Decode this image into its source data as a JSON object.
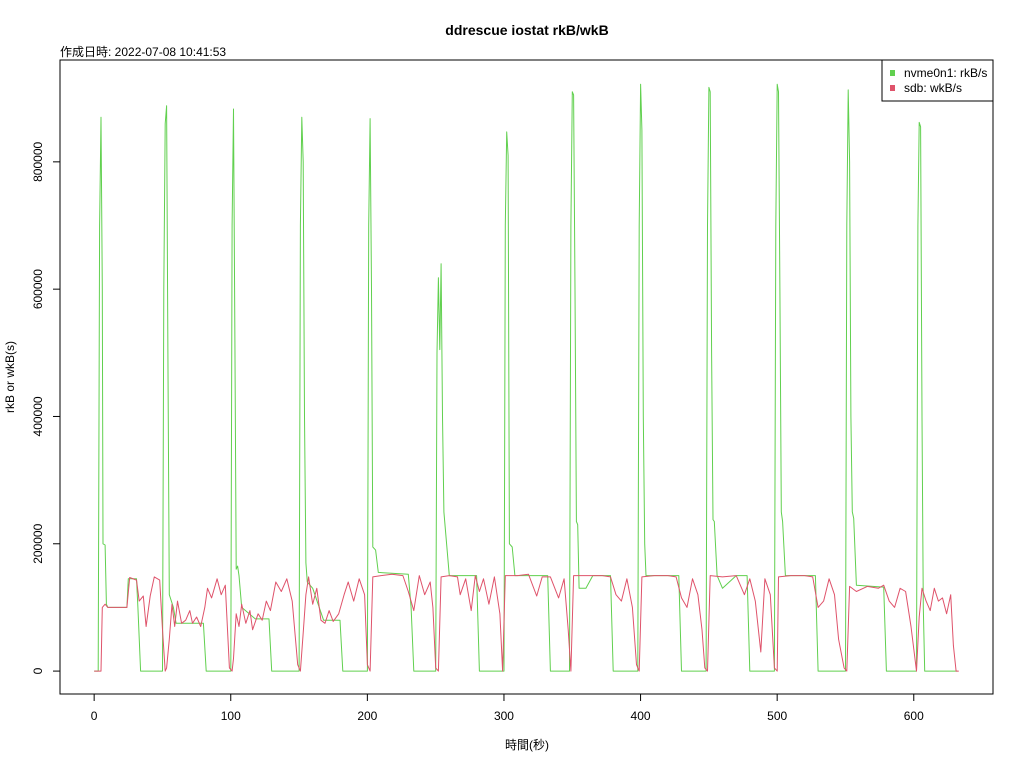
{
  "chart_data": {
    "type": "line",
    "title": "ddrescue iostat rkB/wkB",
    "subtitle": "作成日時: 2022-07-08 10:41:53",
    "xlabel": "時間(秒)",
    "ylabel": "rkB or wkB(s)",
    "xlim": [
      -25,
      658
    ],
    "ylim": [
      -36000,
      960000
    ],
    "x_ticks": [
      0,
      100,
      200,
      300,
      400,
      500,
      600
    ],
    "y_ticks": [
      0,
      200000,
      400000,
      600000,
      800000
    ],
    "x_tick_labels": [
      "0",
      "100",
      "200",
      "300",
      "400",
      "500",
      "600"
    ],
    "y_tick_labels": [
      "0",
      "200000",
      "400000",
      "600000",
      "800000"
    ],
    "legend_position": "top-right",
    "grid": false,
    "series": [
      {
        "name": "nvme0n1: rkB/s",
        "color": "#61D04F",
        "points": [
          [
            0,
            0
          ],
          [
            3,
            0
          ],
          [
            4,
            700000
          ],
          [
            5,
            870000
          ],
          [
            6,
            600000
          ],
          [
            6.5,
            200000
          ],
          [
            8,
            198000
          ],
          [
            9,
            105000
          ],
          [
            10,
            100000
          ],
          [
            24,
            100000
          ],
          [
            25,
            145000
          ],
          [
            31,
            145000
          ],
          [
            32,
            100000
          ],
          [
            34,
            0
          ],
          [
            50,
            0
          ],
          [
            51,
            600000
          ],
          [
            52,
            860000
          ],
          [
            53,
            888000
          ],
          [
            54,
            500000
          ],
          [
            55,
            120000
          ],
          [
            58,
            100000
          ],
          [
            60,
            75000
          ],
          [
            80,
            75000
          ],
          [
            82,
            0
          ],
          [
            100,
            0
          ],
          [
            101,
            700000
          ],
          [
            102,
            883000
          ],
          [
            103,
            520000
          ],
          [
            104,
            160000
          ],
          [
            105,
            165000
          ],
          [
            106,
            150000
          ],
          [
            108,
            100000
          ],
          [
            118,
            82000
          ],
          [
            128,
            82000
          ],
          [
            130,
            0
          ],
          [
            150,
            0
          ],
          [
            151,
            700000
          ],
          [
            152,
            870000
          ],
          [
            153,
            800000
          ],
          [
            154,
            400000
          ],
          [
            155,
            170000
          ],
          [
            156,
            140000
          ],
          [
            160,
            130000
          ],
          [
            168,
            80000
          ],
          [
            180,
            80000
          ],
          [
            182,
            0
          ],
          [
            200,
            0
          ],
          [
            201,
            700000
          ],
          [
            202,
            868000
          ],
          [
            203,
            600000
          ],
          [
            204,
            195000
          ],
          [
            206,
            190000
          ],
          [
            208,
            155000
          ],
          [
            230,
            152000
          ],
          [
            232,
            100000
          ],
          [
            234,
            0
          ],
          [
            250,
            0
          ],
          [
            251,
            500000
          ],
          [
            252,
            618000
          ],
          [
            253,
            505000
          ],
          [
            254,
            640000
          ],
          [
            255,
            400000
          ],
          [
            256,
            250000
          ],
          [
            258,
            200000
          ],
          [
            260,
            150000
          ],
          [
            280,
            150000
          ],
          [
            282,
            0
          ],
          [
            300,
            0
          ],
          [
            301,
            700000
          ],
          [
            302,
            847000
          ],
          [
            303,
            810000
          ],
          [
            304,
            200000
          ],
          [
            306,
            195000
          ],
          [
            308,
            150000
          ],
          [
            332,
            150000
          ],
          [
            334,
            0
          ],
          [
            348,
            0
          ],
          [
            349,
            700000
          ],
          [
            350,
            910000
          ],
          [
            351,
            905000
          ],
          [
            352,
            600000
          ],
          [
            353,
            235000
          ],
          [
            354,
            230000
          ],
          [
            355,
            130000
          ],
          [
            360,
            130000
          ],
          [
            365,
            150000
          ],
          [
            378,
            150000
          ],
          [
            380,
            0
          ],
          [
            398,
            0
          ],
          [
            399,
            700000
          ],
          [
            400,
            922000
          ],
          [
            401,
            850000
          ],
          [
            402,
            400000
          ],
          [
            403,
            200000
          ],
          [
            404,
            150000
          ],
          [
            428,
            150000
          ],
          [
            430,
            0
          ],
          [
            448,
            0
          ],
          [
            449,
            700000
          ],
          [
            450,
            917000
          ],
          [
            451,
            910000
          ],
          [
            452,
            500000
          ],
          [
            453,
            238000
          ],
          [
            454,
            235000
          ],
          [
            456,
            150000
          ],
          [
            460,
            130000
          ],
          [
            470,
            150000
          ],
          [
            478,
            150000
          ],
          [
            480,
            0
          ],
          [
            498,
            0
          ],
          [
            499,
            700000
          ],
          [
            500,
            922000
          ],
          [
            501,
            910000
          ],
          [
            502,
            600000
          ],
          [
            503,
            250000
          ],
          [
            504,
            235000
          ],
          [
            506,
            150000
          ],
          [
            528,
            150000
          ],
          [
            530,
            0
          ],
          [
            550,
            0
          ],
          [
            551,
            700000
          ],
          [
            552,
            913000
          ],
          [
            553,
            800000
          ],
          [
            554,
            400000
          ],
          [
            555,
            250000
          ],
          [
            556,
            240000
          ],
          [
            558,
            135000
          ],
          [
            578,
            132000
          ],
          [
            580,
            0
          ],
          [
            602,
            0
          ],
          [
            603,
            700000
          ],
          [
            604,
            862000
          ],
          [
            605,
            855000
          ],
          [
            606,
            400000
          ],
          [
            607,
            100000
          ],
          [
            608,
            0
          ],
          [
            630,
            0
          ],
          [
            632,
            0
          ]
        ]
      },
      {
        "name": "sdb: wkB/s",
        "color": "#DF536B",
        "points": [
          [
            0,
            0
          ],
          [
            5,
            0
          ],
          [
            6,
            100000
          ],
          [
            8,
            105000
          ],
          [
            10,
            100000
          ],
          [
            24,
            100000
          ],
          [
            26,
            147000
          ],
          [
            31,
            143000
          ],
          [
            33,
            110000
          ],
          [
            36,
            118000
          ],
          [
            38,
            70000
          ],
          [
            41,
            118000
          ],
          [
            44,
            148000
          ],
          [
            48,
            143000
          ],
          [
            50,
            65000
          ],
          [
            52,
            0
          ],
          [
            53,
            5000
          ],
          [
            55,
            50000
          ],
          [
            57,
            105000
          ],
          [
            59,
            70000
          ],
          [
            61,
            110000
          ],
          [
            64,
            75000
          ],
          [
            67,
            80000
          ],
          [
            70,
            95000
          ],
          [
            72,
            75000
          ],
          [
            75,
            85000
          ],
          [
            78,
            70000
          ],
          [
            81,
            100000
          ],
          [
            83,
            130000
          ],
          [
            86,
            115000
          ],
          [
            90,
            145000
          ],
          [
            93,
            120000
          ],
          [
            96,
            135000
          ],
          [
            99,
            5000
          ],
          [
            101,
            0
          ],
          [
            102,
            20000
          ],
          [
            104,
            90000
          ],
          [
            106,
            70000
          ],
          [
            108,
            105000
          ],
          [
            111,
            75000
          ],
          [
            114,
            95000
          ],
          [
            116,
            65000
          ],
          [
            120,
            90000
          ],
          [
            123,
            80000
          ],
          [
            126,
            110000
          ],
          [
            129,
            95000
          ],
          [
            133,
            140000
          ],
          [
            137,
            125000
          ],
          [
            141,
            145000
          ],
          [
            145,
            110000
          ],
          [
            149,
            10000
          ],
          [
            151,
            0
          ],
          [
            153,
            60000
          ],
          [
            155,
            120000
          ],
          [
            157,
            148000
          ],
          [
            160,
            105000
          ],
          [
            163,
            130000
          ],
          [
            166,
            80000
          ],
          [
            169,
            75000
          ],
          [
            172,
            95000
          ],
          [
            175,
            78000
          ],
          [
            179,
            90000
          ],
          [
            183,
            120000
          ],
          [
            186,
            140000
          ],
          [
            190,
            110000
          ],
          [
            194,
            145000
          ],
          [
            198,
            120000
          ],
          [
            200,
            10000
          ],
          [
            202,
            0
          ],
          [
            204,
            148000
          ],
          [
            210,
            150000
          ],
          [
            218,
            152000
          ],
          [
            226,
            150000
          ],
          [
            230,
            125000
          ],
          [
            234,
            95000
          ],
          [
            238,
            150000
          ],
          [
            242,
            120000
          ],
          [
            246,
            140000
          ],
          [
            248,
            100000
          ],
          [
            250,
            5000
          ],
          [
            252,
            0
          ],
          [
            254,
            148000
          ],
          [
            260,
            150000
          ],
          [
            266,
            148000
          ],
          [
            268,
            120000
          ],
          [
            272,
            145000
          ],
          [
            276,
            95000
          ],
          [
            279,
            150000
          ],
          [
            282,
            125000
          ],
          [
            285,
            145000
          ],
          [
            289,
            105000
          ],
          [
            293,
            148000
          ],
          [
            297,
            90000
          ],
          [
            299,
            0
          ],
          [
            301,
            150000
          ],
          [
            310,
            150000
          ],
          [
            318,
            152000
          ],
          [
            324,
            118000
          ],
          [
            328,
            148000
          ],
          [
            334,
            148000
          ],
          [
            340,
            115000
          ],
          [
            344,
            145000
          ],
          [
            347,
            65000
          ],
          [
            349,
            0
          ],
          [
            351,
            150000
          ],
          [
            360,
            150000
          ],
          [
            372,
            150000
          ],
          [
            378,
            148000
          ],
          [
            382,
            120000
          ],
          [
            386,
            110000
          ],
          [
            390,
            145000
          ],
          [
            394,
            100000
          ],
          [
            397,
            10000
          ],
          [
            399,
            0
          ],
          [
            401,
            148000
          ],
          [
            410,
            150000
          ],
          [
            420,
            150000
          ],
          [
            426,
            148000
          ],
          [
            430,
            115000
          ],
          [
            434,
            100000
          ],
          [
            438,
            145000
          ],
          [
            442,
            120000
          ],
          [
            445,
            65000
          ],
          [
            447,
            5000
          ],
          [
            449,
            0
          ],
          [
            451,
            150000
          ],
          [
            460,
            148000
          ],
          [
            470,
            150000
          ],
          [
            476,
            120000
          ],
          [
            480,
            145000
          ],
          [
            484,
            110000
          ],
          [
            488,
            30000
          ],
          [
            491,
            145000
          ],
          [
            495,
            120000
          ],
          [
            498,
            5000
          ],
          [
            500,
            0
          ],
          [
            501,
            148000
          ],
          [
            510,
            150000
          ],
          [
            520,
            150000
          ],
          [
            526,
            148000
          ],
          [
            530,
            100000
          ],
          [
            534,
            110000
          ],
          [
            538,
            145000
          ],
          [
            542,
            120000
          ],
          [
            545,
            50000
          ],
          [
            549,
            5000
          ],
          [
            551,
            0
          ],
          [
            553,
            133000
          ],
          [
            558,
            125000
          ],
          [
            566,
            133000
          ],
          [
            574,
            130000
          ],
          [
            578,
            135000
          ],
          [
            582,
            110000
          ],
          [
            586,
            100000
          ],
          [
            590,
            130000
          ],
          [
            594,
            125000
          ],
          [
            598,
            70000
          ],
          [
            602,
            0
          ],
          [
            604,
            85000
          ],
          [
            606,
            130000
          ],
          [
            609,
            110000
          ],
          [
            612,
            95000
          ],
          [
            615,
            130000
          ],
          [
            618,
            110000
          ],
          [
            621,
            115000
          ],
          [
            624,
            90000
          ],
          [
            627,
            120000
          ],
          [
            629,
            40000
          ],
          [
            631,
            0
          ],
          [
            633,
            0
          ]
        ]
      }
    ]
  }
}
